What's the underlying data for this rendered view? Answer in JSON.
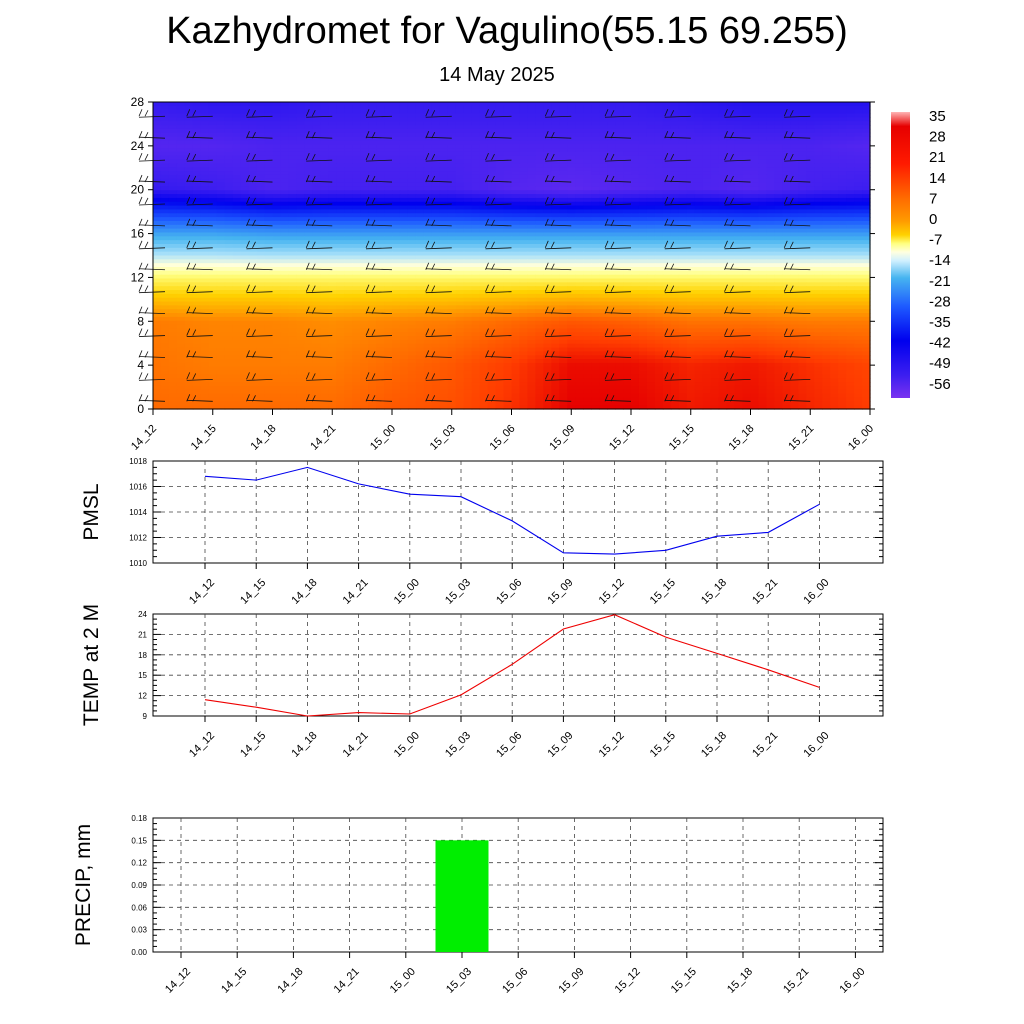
{
  "title": "Kazhydromet for Vagulino(55.15 69.255)",
  "subtitle": "14 May 2025",
  "colors": {
    "pmsl_line": "#0000ee",
    "temp_line": "#ee0000",
    "precip_bar": "#00ee00"
  },
  "chart_data": [
    {
      "type": "heatmap",
      "title": "",
      "xlabel": "",
      "ylabel": "",
      "categories": [
        "14_12",
        "14_15",
        "14_18",
        "14_21",
        "15_00",
        "15_03",
        "15_06",
        "15_09",
        "15_12",
        "15_15",
        "15_18",
        "15_21",
        "16_00"
      ],
      "ylim": [
        0,
        28
      ],
      "yticks": [
        0,
        4,
        8,
        12,
        16,
        20,
        24,
        28
      ],
      "colorbar": {
        "labels": [
          "35",
          "28",
          "21",
          "14",
          "7",
          "0",
          "-7",
          "-14",
          "-21",
          "-28",
          "-35",
          "-42",
          "-49",
          "-56"
        ]
      },
      "layers": [
        {
          "height": 0,
          "values": [
            12,
            12,
            12,
            12,
            14,
            15,
            18,
            22,
            22,
            20,
            21,
            19,
            17
          ]
        },
        {
          "height": 4,
          "values": [
            11,
            10,
            10,
            10,
            12,
            14,
            17,
            21,
            21,
            19,
            20,
            18,
            16
          ]
        },
        {
          "height": 8,
          "values": [
            10,
            9,
            9,
            8,
            9,
            10,
            12,
            14,
            13,
            11,
            11,
            10,
            10
          ]
        },
        {
          "height": 12,
          "values": [
            -6,
            -6,
            -6,
            -6,
            -6,
            -6,
            -6,
            -6,
            -6,
            -6,
            -6,
            -6,
            -6
          ]
        },
        {
          "height": 16,
          "values": [
            -27,
            -27,
            -28,
            -28,
            -28,
            -28,
            -28,
            -28,
            -28,
            -28,
            -28,
            -28,
            -28
          ]
        },
        {
          "height": 20,
          "values": [
            -51,
            -52,
            -54,
            -53,
            -53,
            -53,
            -55,
            -56,
            -55,
            -54,
            -55,
            -53,
            -52
          ]
        },
        {
          "height": 24,
          "values": [
            -55,
            -55,
            -54,
            -54,
            -54,
            -54,
            -54,
            -54,
            -54,
            -54,
            -54,
            -54,
            -55
          ]
        },
        {
          "height": 28,
          "values": [
            -51,
            -50,
            -50,
            -51,
            -51,
            -51,
            -51,
            -51,
            -51,
            -50,
            -49,
            -49,
            -49
          ]
        }
      ],
      "wind_barbs": "present"
    },
    {
      "type": "line",
      "ylabel": "PMSL",
      "categories": [
        "14_12",
        "14_15",
        "14_18",
        "14_21",
        "15_00",
        "15_03",
        "15_06",
        "15_09",
        "15_12",
        "15_15",
        "15_18",
        "15_21",
        "16_00"
      ],
      "series": [
        {
          "values": [
            1016.8,
            1016.5,
            1017.5,
            1016.2,
            1015.4,
            1015.2,
            1013.3,
            1010.8,
            1010.7,
            1011.0,
            1012.1,
            1012.4,
            1014.6
          ]
        }
      ],
      "ylim": [
        1010,
        1018
      ],
      "yticks": [
        "1010",
        "1012",
        "1014",
        "1016",
        "1018"
      ],
      "grid": true
    },
    {
      "type": "line",
      "ylabel": "TEMP at 2 M",
      "categories": [
        "14_12",
        "14_15",
        "14_18",
        "14_21",
        "15_00",
        "15_03",
        "15_06",
        "15_09",
        "15_12",
        "15_15",
        "15_18",
        "15_21",
        "16_00"
      ],
      "series": [
        {
          "values": [
            11.4,
            10.3,
            9.0,
            9.5,
            9.3,
            12.1,
            16.6,
            21.8,
            23.9,
            20.6,
            18.2,
            15.8,
            13.2
          ]
        }
      ],
      "ylim": [
        9,
        24
      ],
      "yticks": [
        "9",
        "12",
        "15",
        "18",
        "21",
        "24"
      ],
      "grid": true
    },
    {
      "type": "bar",
      "ylabel": "PRECIP, mm",
      "categories": [
        "14_12",
        "14_15",
        "14_18",
        "14_21",
        "15_00",
        "15_03",
        "15_06",
        "15_09",
        "15_12",
        "15_15",
        "15_18",
        "15_21",
        "16_00"
      ],
      "values": [
        0,
        0,
        0,
        0,
        0,
        0.15,
        0,
        0,
        0,
        0,
        0,
        0,
        0
      ],
      "ylim": [
        0,
        0.18
      ],
      "yticks": [
        "0.00",
        "0.03",
        "0.06",
        "0.09",
        "0.12",
        "0.15",
        "0.18"
      ],
      "grid": true
    }
  ]
}
